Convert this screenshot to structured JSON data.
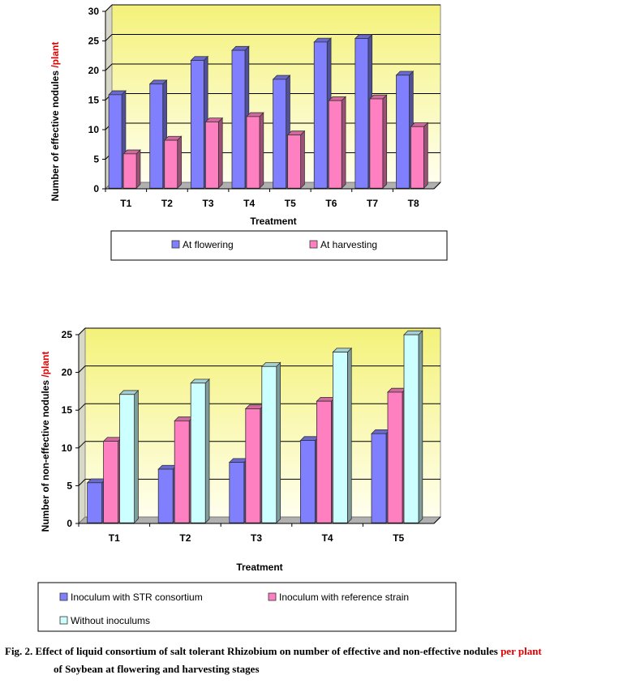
{
  "chart_data": [
    {
      "type": "bar",
      "title": "",
      "xlabel": "Treatment",
      "ylabel_main": "Number of effective nodules ",
      "ylabel_accent": "/plant",
      "ylim": [
        0,
        30
      ],
      "yticks": [
        "0",
        "5",
        "10",
        "15",
        "20",
        "25",
        "30"
      ],
      "categories": [
        "T1",
        "T2",
        "T3",
        "T4",
        "T5",
        "T6",
        "T7",
        "T8"
      ],
      "series": [
        {
          "name": "At flowering",
          "color": "#8080ff",
          "values": [
            15.8,
            17.6,
            21.6,
            23.3,
            18.4,
            24.7,
            25.3,
            19.1
          ]
        },
        {
          "name": "At harvesting",
          "color": "#ff80c0",
          "values": [
            5.8,
            8.1,
            11.2,
            12.1,
            9.0,
            14.8,
            15.1,
            10.4
          ]
        }
      ],
      "legend": "bottom",
      "grid": true
    },
    {
      "type": "bar",
      "title": "",
      "xlabel": "Treatment",
      "ylabel_main": "Number of non-effective nodules ",
      "ylabel_accent": "/plant",
      "ylim": [
        0,
        25
      ],
      "yticks": [
        "0",
        "5",
        "10",
        "15",
        "20",
        "25"
      ],
      "categories": [
        "T1",
        "T2",
        "T3",
        "T4",
        "T5"
      ],
      "series": [
        {
          "name": "Inoculum with STR consortium",
          "color": "#8080ff",
          "values": [
            5.3,
            7.1,
            8.0,
            10.9,
            11.8
          ]
        },
        {
          "name": "Inoculum with reference strain",
          "color": "#ff80c0",
          "values": [
            10.8,
            13.5,
            15.1,
            16.1,
            17.3
          ]
        },
        {
          "name": "Without inoculums",
          "color": "#ccffff",
          "values": [
            17.0,
            18.5,
            20.7,
            22.6,
            24.9
          ]
        }
      ],
      "legend": "bottom",
      "grid": true
    }
  ],
  "caption": {
    "line1_main": "Fig. 2. Effect of liquid consortium of salt tolerant Rhizobium on number of effective and non-effective nodules ",
    "line1_accent": "per plant",
    "line2": "of Soybean at flowering and harvesting stages"
  }
}
